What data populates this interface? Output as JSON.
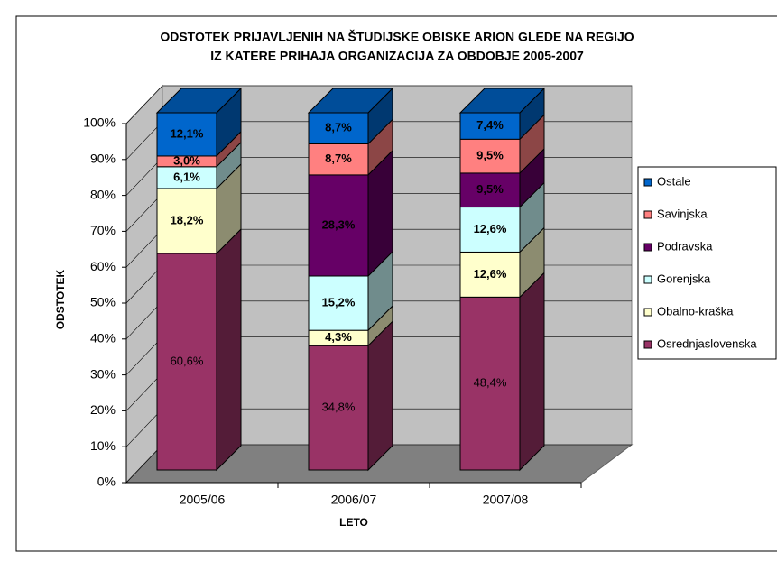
{
  "chart_data": {
    "type": "bar3d_stacked",
    "title": [
      "ODSTOTEK PRIJAVLJENIH NA ŠTUDIJSKE OBISKE ARION GLEDE NA REGIJO",
      "IZ KATERE PRIHAJA ORGANIZACIJA ZA OBDOBJE 2005-2007"
    ],
    "x_label": "LETO",
    "y_label": "ODSTOTEK",
    "categories": [
      "2005/06",
      "2006/07",
      "2007/08"
    ],
    "series": [
      {
        "name": "Osrednjaslovenska",
        "color": "#993366",
        "label_color": "#ffffff",
        "values": [
          60.6,
          34.8,
          48.4
        ],
        "value_labels": [
          "60,6%",
          "34,8%",
          "48,4%"
        ]
      },
      {
        "name": "Obalno-kraška",
        "color": "#ffffcc",
        "label_color": "#000000",
        "values": [
          18.2,
          4.3,
          12.6
        ],
        "value_labels": [
          "18,2%",
          "4,3%",
          "12,6%"
        ]
      },
      {
        "name": "Gorenjska",
        "color": "#ccffff",
        "label_color": "#000000",
        "values": [
          6.1,
          15.2,
          12.6
        ],
        "value_labels": [
          "6,1%",
          "15,2%",
          "12,6%"
        ]
      },
      {
        "name": "Podravska",
        "color": "#660066",
        "label_color": "#ffffff",
        "values": [
          null,
          28.3,
          9.5
        ],
        "value_labels": [
          null,
          "28,3%",
          "9,5%"
        ]
      },
      {
        "name": "Savinjska",
        "color": "#ff8080",
        "label_color": "#000000",
        "values": [
          3.0,
          8.7,
          9.5
        ],
        "value_labels": [
          "3,0%",
          "8,7%",
          "9,5%"
        ]
      },
      {
        "name": "Ostale",
        "color": "#0066cc",
        "label_color": "#ffff00",
        "values": [
          12.1,
          8.7,
          7.4
        ],
        "value_labels": [
          "12,1%",
          "8,7%",
          "7,4%"
        ]
      }
    ],
    "ylim": [
      0,
      100
    ],
    "yticks": [
      {
        "value": 0,
        "label": "0%"
      },
      {
        "value": 10,
        "label": "10%"
      },
      {
        "value": 20,
        "label": "20%"
      },
      {
        "value": 30,
        "label": "30%"
      },
      {
        "value": 40,
        "label": "40%"
      },
      {
        "value": 50,
        "label": "50%"
      },
      {
        "value": 60,
        "label": "60%"
      },
      {
        "value": 70,
        "label": "70%"
      },
      {
        "value": 80,
        "label": "80%"
      },
      {
        "value": 90,
        "label": "90%"
      },
      {
        "value": 100,
        "label": "100%"
      }
    ],
    "grid": true,
    "legend": "right"
  }
}
